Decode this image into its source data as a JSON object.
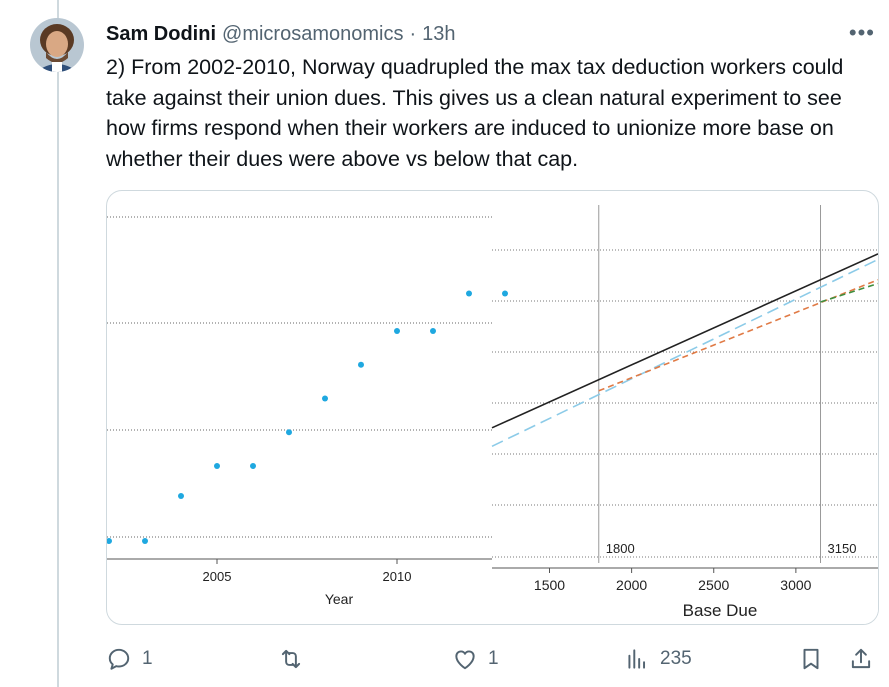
{
  "tweet": {
    "author_name": "Sam Dodini",
    "author_handle": "@microsamonomics",
    "separator": "·",
    "timestamp": "13h",
    "more_label": "•••",
    "text": "2) From 2002-2010, Norway quadrupled the max tax deduction workers could take against their union dues. This gives us a clean natural experiment to see how firms respond when their workers are induced to unionize more base on whether their dues were above vs below that cap."
  },
  "actions": {
    "replies": "1",
    "reposts": "",
    "likes": "1",
    "views": "235"
  },
  "colors": {
    "accent_blue": "#1fa8e0",
    "black_line": "#222222",
    "blue_dash": "#8ccbe8",
    "orange_dash": "#e07a45",
    "green_dash": "#3f8f3f",
    "icon_gray": "#536471"
  },
  "chart_data": [
    {
      "type": "scatter",
      "xlabel": "Year",
      "ylabel": "",
      "x_ticks": [
        "2005",
        "2010"
      ],
      "xlim": [
        2002,
        2012.5
      ],
      "ylim": [
        0.8,
        5.6
      ],
      "points": [
        {
          "x": 2002,
          "y": 1
        },
        {
          "x": 2003,
          "y": 1
        },
        {
          "x": 2004,
          "y": 1.6
        },
        {
          "x": 2005,
          "y": 2
        },
        {
          "x": 2006,
          "y": 2
        },
        {
          "x": 2007,
          "y": 2.45
        },
        {
          "x": 2008,
          "y": 2.9
        },
        {
          "x": 2009,
          "y": 3.35
        },
        {
          "x": 2010,
          "y": 3.8
        },
        {
          "x": 2011,
          "y": 3.8
        },
        {
          "x": 2012,
          "y": 4.3
        },
        {
          "x": 2013,
          "y": 4.3
        }
      ],
      "grid": true
    },
    {
      "type": "line",
      "xlabel": "Base Due",
      "ylabel": "",
      "x_ticks": [
        "1500",
        "2000",
        "2500",
        "3000"
      ],
      "xlim": [
        1150,
        3500
      ],
      "ylim": [
        0,
        100
      ],
      "vlines": [
        {
          "x": 1800,
          "label": "1800"
        },
        {
          "x": 3150,
          "label": "3150"
        }
      ],
      "series": [
        {
          "style": "solid",
          "color": "black",
          "x": [
            1150,
            3500
          ],
          "y": [
            36,
            83
          ]
        },
        {
          "style": "dashed",
          "color": "light-blue",
          "x": [
            1150,
            3500
          ],
          "y": [
            31,
            81.5
          ]
        },
        {
          "style": "dashed",
          "color": "orange",
          "x": [
            1800,
            3500
          ],
          "y": [
            46,
            76
          ]
        },
        {
          "style": "dashed",
          "color": "green",
          "x": [
            3150,
            3500
          ],
          "y": [
            70,
            75
          ]
        }
      ],
      "grid": true
    }
  ]
}
